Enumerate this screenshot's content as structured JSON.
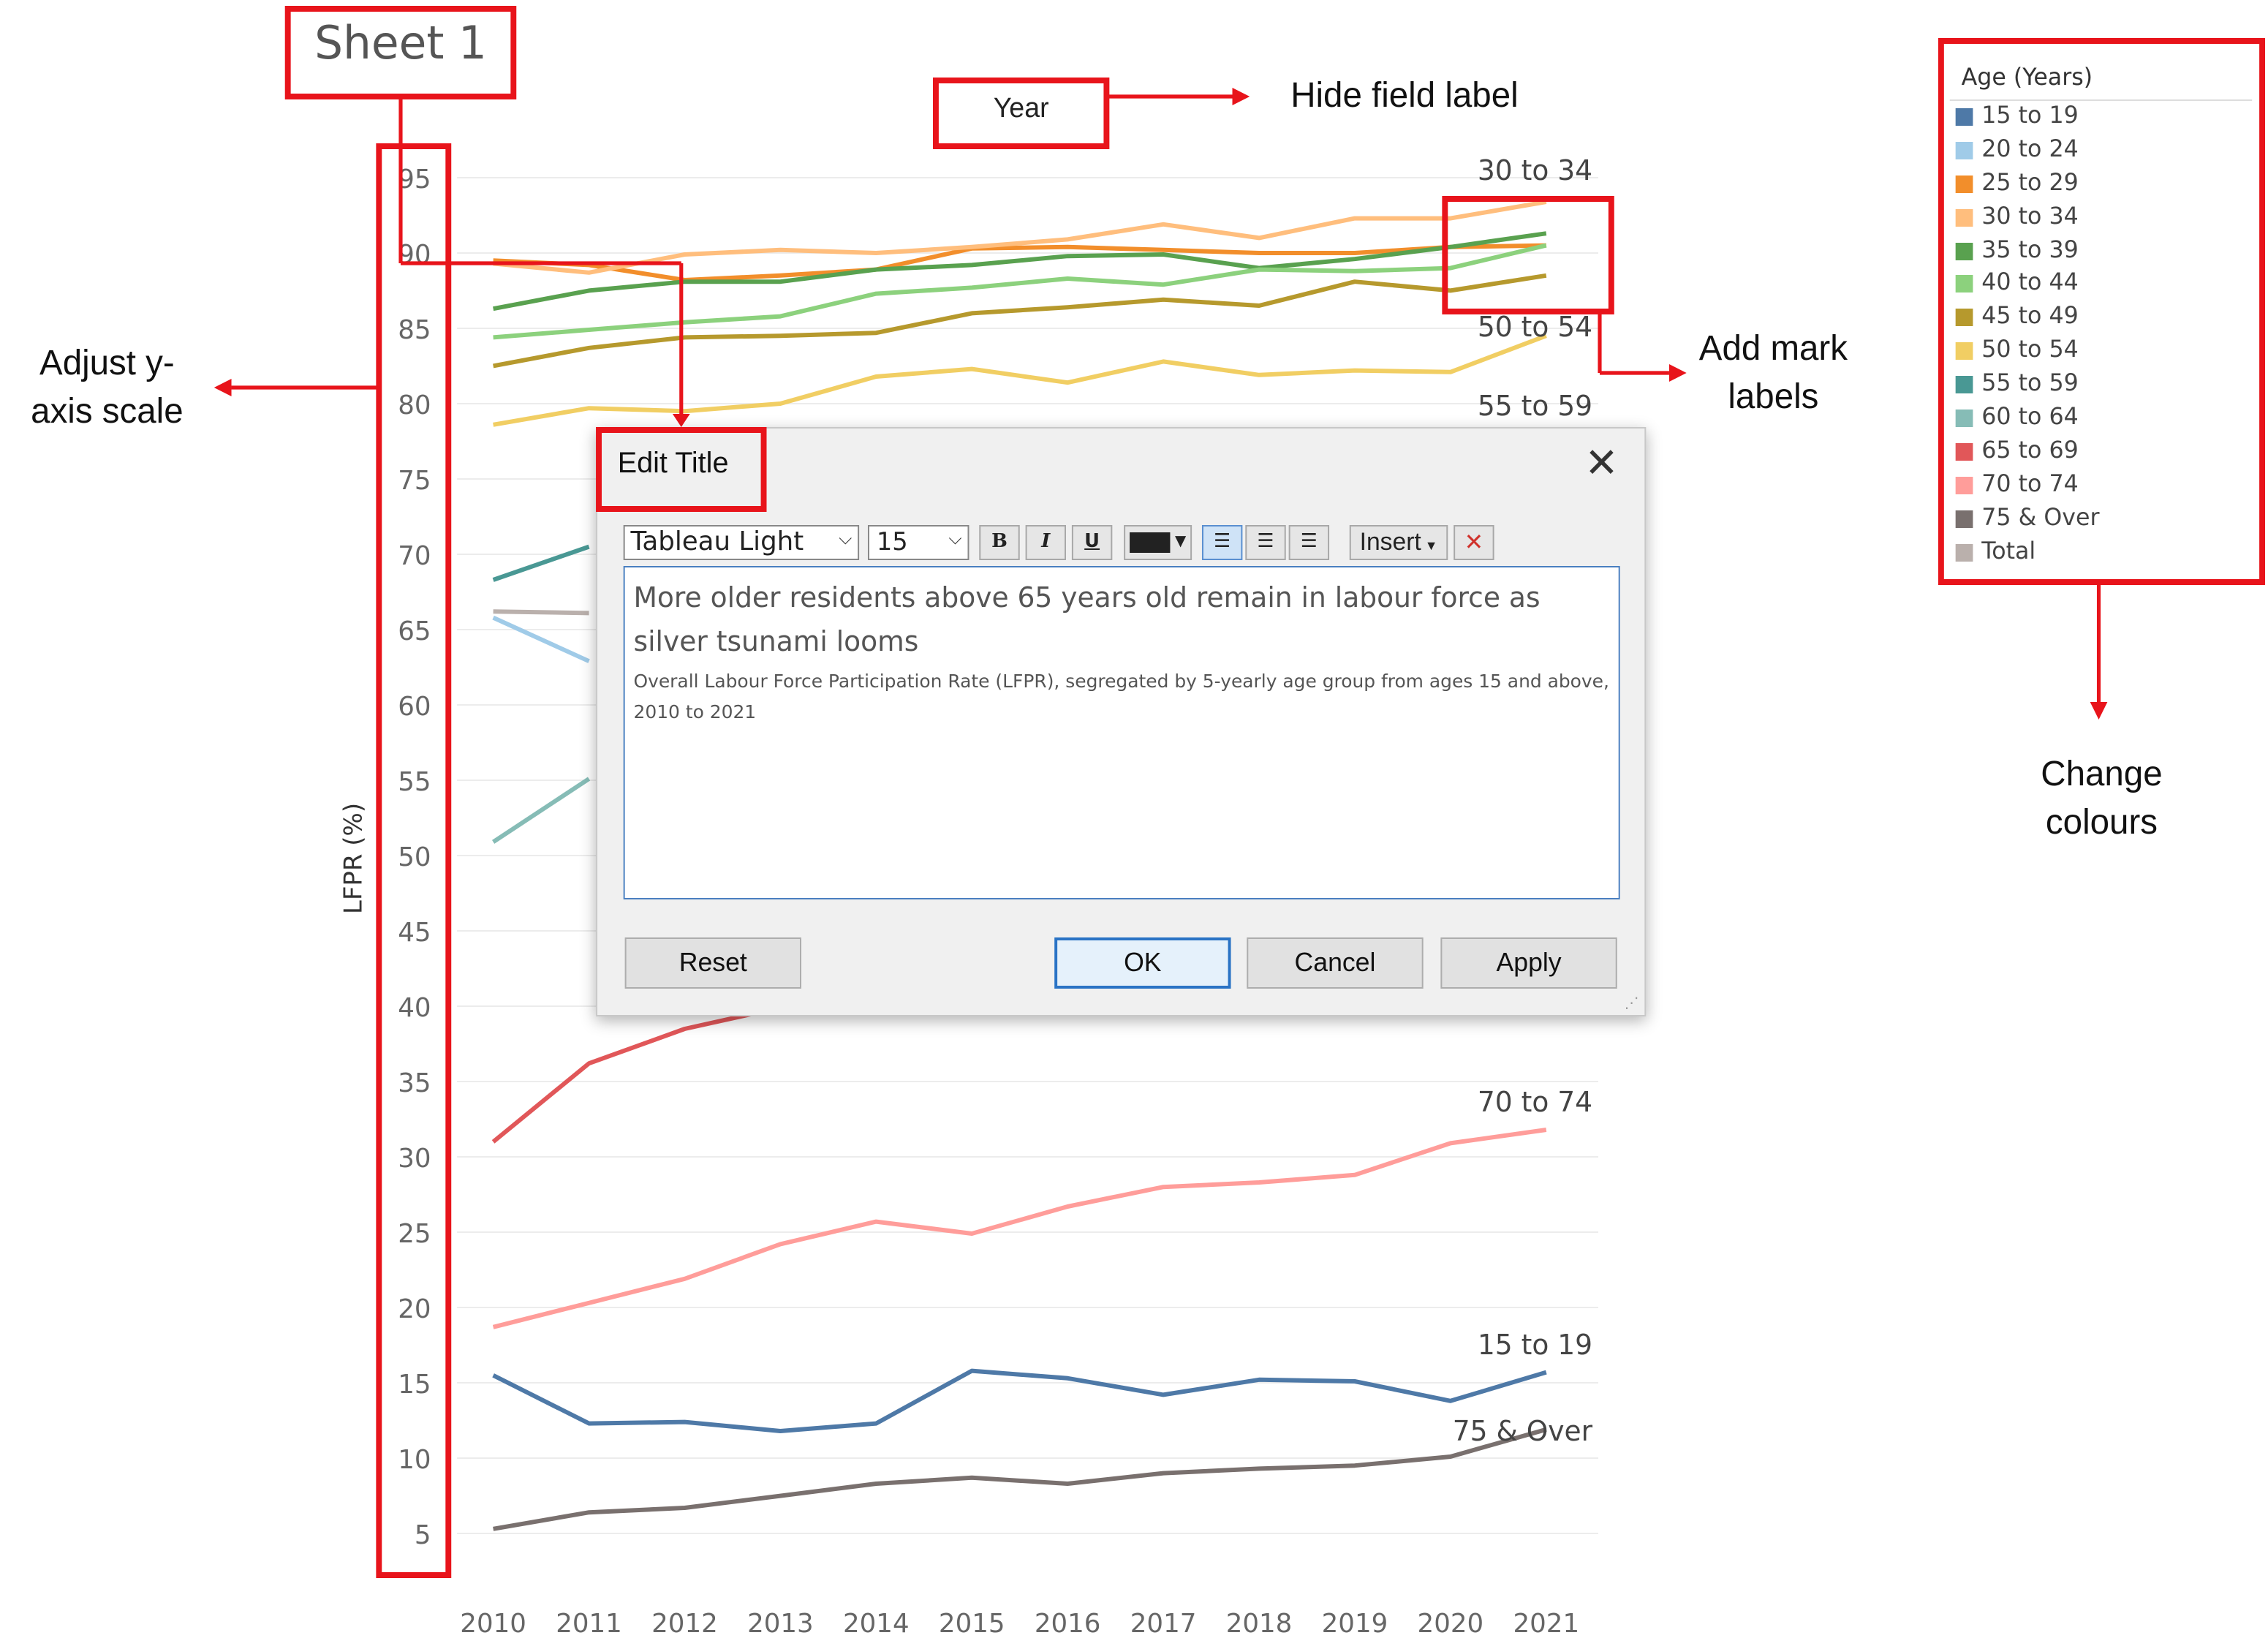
{
  "sheet_title": "Sheet 1",
  "field_label": "Year",
  "annotations": {
    "hide_field_label": "Hide field label",
    "adjust_y_axis": "Adjust y-\naxis scale",
    "add_mark_labels": "Add mark\nlabels",
    "change_colours": "Change\ncolours"
  },
  "dialog": {
    "title": "Edit Title",
    "font_name": "Tableau Light",
    "font_size": "15",
    "bold": "B",
    "italic": "I",
    "underline": "U",
    "insert_label": "Insert",
    "title_text": "More older residents above 65 years old remain in labour force as silver tsunami looms",
    "subtitle_text": "Overall Labour Force Participation Rate (LFPR), segregated by 5-yearly age group from ages 15 and above, 2010 to 2021",
    "buttons": {
      "reset": "Reset",
      "ok": "OK",
      "cancel": "Cancel",
      "apply": "Apply"
    }
  },
  "legend": {
    "title": "Age (Years)",
    "items": [
      {
        "label": "15 to 19",
        "color": "#4e79a7"
      },
      {
        "label": "20 to 24",
        "color": "#a0cbe8"
      },
      {
        "label": "25 to 29",
        "color": "#f28e2b"
      },
      {
        "label": "30 to 34",
        "color": "#ffbe7d"
      },
      {
        "label": "35 to 39",
        "color": "#59a14f"
      },
      {
        "label": "40 to 44",
        "color": "#8cd17d"
      },
      {
        "label": "45 to 49",
        "color": "#b6992d"
      },
      {
        "label": "50 to 54",
        "color": "#f1ce63"
      },
      {
        "label": "55 to 59",
        "color": "#499894"
      },
      {
        "label": "60 to 64",
        "color": "#86bcb6"
      },
      {
        "label": "65 to 69",
        "color": "#e15759"
      },
      {
        "label": "70 to 74",
        "color": "#ff9d9a"
      },
      {
        "label": "75 & Over",
        "color": "#79706e"
      },
      {
        "label": "Total",
        "color": "#bab0ac"
      }
    ]
  },
  "chart_data": {
    "type": "line",
    "ylabel": "LFPR (%)",
    "xlabel": "",
    "ylim": [
      0,
      97
    ],
    "y_ticks": [
      5,
      10,
      15,
      20,
      25,
      30,
      35,
      40,
      45,
      50,
      55,
      60,
      65,
      70,
      75,
      80,
      85,
      90,
      95
    ],
    "x": [
      "2010",
      "2011",
      "2012",
      "2013",
      "2014",
      "2015",
      "2016",
      "2017",
      "2018",
      "2019",
      "2020",
      "2021"
    ],
    "series": [
      {
        "name": "15 to 19",
        "color": "#4e79a7",
        "values": [
          15.5,
          12.3,
          12.4,
          11.8,
          12.3,
          15.8,
          15.3,
          14.2,
          15.2,
          15.1,
          13.8,
          15.7
        ],
        "label_visible": true
      },
      {
        "name": "20 to 24",
        "color": "#a0cbe8",
        "values": [
          65.8,
          62.9,
          null,
          null,
          null,
          null,
          null,
          null,
          null,
          null,
          null,
          null
        ],
        "label_visible": false
      },
      {
        "name": "25 to 29",
        "color": "#f28e2b",
        "values": [
          89.5,
          89.2,
          88.2,
          88.5,
          88.9,
          90.3,
          90.4,
          90.2,
          90.0,
          90.0,
          90.4,
          90.5
        ],
        "label_visible": false
      },
      {
        "name": "30 to 34",
        "color": "#ffbe7d",
        "values": [
          89.3,
          88.7,
          89.9,
          90.2,
          90.0,
          90.4,
          90.9,
          91.9,
          91.0,
          92.3,
          92.3,
          93.4
        ],
        "label_visible": true
      },
      {
        "name": "35 to 39",
        "color": "#59a14f",
        "values": [
          86.3,
          87.5,
          88.1,
          88.1,
          88.9,
          89.2,
          89.8,
          89.9,
          89.0,
          89.6,
          90.4,
          91.3
        ],
        "label_visible": false
      },
      {
        "name": "40 to 44",
        "color": "#8cd17d",
        "values": [
          84.4,
          84.9,
          85.4,
          85.8,
          87.3,
          87.7,
          88.3,
          87.9,
          88.9,
          88.8,
          89.0,
          90.5
        ],
        "label_visible": false
      },
      {
        "name": "45 to 49",
        "color": "#b6992d",
        "values": [
          82.5,
          83.7,
          84.4,
          84.5,
          84.7,
          86.0,
          86.4,
          86.9,
          86.5,
          88.1,
          87.5,
          88.5
        ],
        "label_visible": false
      },
      {
        "name": "50 to 54",
        "color": "#f1ce63",
        "values": [
          78.6,
          79.7,
          79.5,
          80.0,
          81.8,
          82.3,
          81.4,
          82.8,
          81.9,
          82.2,
          82.1,
          84.5
        ],
        "label_visible": true
      },
      {
        "name": "55 to 59",
        "color": "#499894",
        "values": [
          68.3,
          70.5,
          null,
          null,
          null,
          null,
          null,
          null,
          null,
          null,
          null,
          null
        ],
        "label_visible": true
      },
      {
        "name": "60 to 64",
        "color": "#86bcb6",
        "values": [
          50.9,
          55.1,
          null,
          null,
          null,
          null,
          null,
          null,
          null,
          null,
          null,
          null
        ],
        "label_visible": false
      },
      {
        "name": "65 to 69",
        "color": "#e15759",
        "values": [
          31.0,
          36.2,
          38.5,
          39.9,
          null,
          null,
          null,
          null,
          null,
          null,
          null,
          null
        ],
        "label_visible": false
      },
      {
        "name": "70 to 74",
        "color": "#ff9d9a",
        "values": [
          18.7,
          20.3,
          21.9,
          24.2,
          25.7,
          24.9,
          26.7,
          28.0,
          28.3,
          28.8,
          30.9,
          31.8
        ],
        "label_visible": true
      },
      {
        "name": "75 & Over",
        "color": "#79706e",
        "values": [
          5.3,
          6.4,
          6.7,
          7.5,
          8.3,
          8.7,
          8.3,
          9.0,
          9.3,
          9.5,
          10.1,
          11.9
        ],
        "label_visible": true
      },
      {
        "name": "Total",
        "color": "#bab0ac",
        "values": [
          66.2,
          66.1,
          null,
          null,
          null,
          null,
          null,
          null,
          null,
          null,
          null,
          null
        ],
        "label_visible": false
      }
    ]
  }
}
